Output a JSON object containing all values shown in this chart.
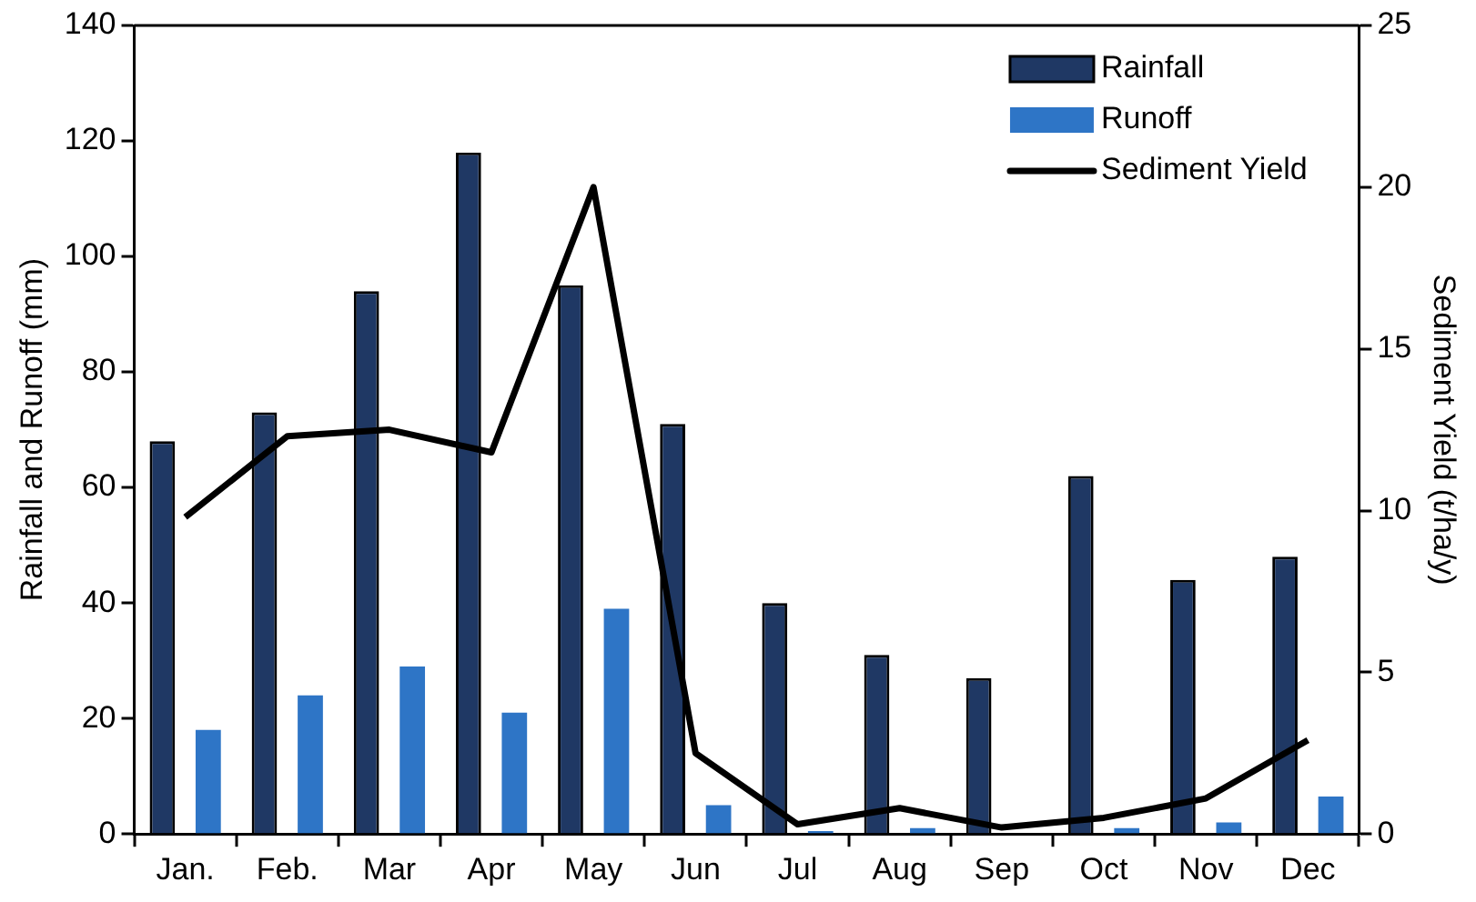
{
  "chart_data": {
    "type": "bar",
    "ylabel": "Rainfall and Runoff (mm)",
    "y2label": "Sediment Yield (t/ha/y)",
    "categories": [
      "Jan.",
      "Feb.",
      "Mar",
      "Apr",
      "May",
      "Jun",
      "Jul",
      "Aug",
      "Sep",
      "Oct",
      "Nov",
      "Dec"
    ],
    "series": [
      {
        "name": "Rainfall",
        "color": "#1f3864",
        "values": [
          68,
          73,
          94,
          118,
          95,
          71,
          40,
          31,
          27,
          62,
          44,
          48
        ]
      },
      {
        "name": "Runoff",
        "color": "#2e75c6",
        "values": [
          18,
          24,
          29,
          21,
          39,
          5,
          0.5,
          1,
          0,
          1,
          2,
          6.5
        ]
      },
      {
        "name": "Sediment Yield",
        "type": "line",
        "axis": "y2",
        "color": "#000000",
        "values": [
          9.8,
          12.3,
          12.5,
          11.8,
          20,
          2.5,
          0.3,
          0.8,
          0.2,
          0.5,
          1.1,
          2.9
        ]
      }
    ],
    "ylim": [
      0,
      140
    ],
    "yticks": [
      0,
      20,
      40,
      60,
      80,
      100,
      120,
      140
    ],
    "y2lim": [
      0,
      25
    ],
    "y2ticks": [
      0,
      5,
      10,
      15,
      20,
      25
    ],
    "grid": false,
    "legend": "top right",
    "marker": "none",
    "line_style": "solid"
  }
}
